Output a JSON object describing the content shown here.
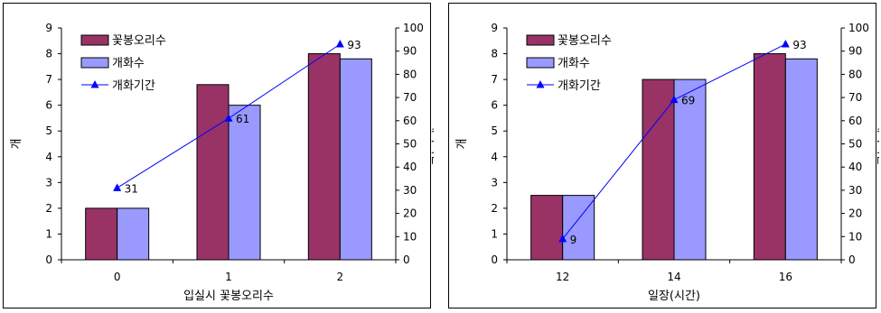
{
  "chart_data": [
    {
      "type": "bar",
      "xlabel": "입실시 꽃봉오리수",
      "ylabel": "개",
      "y2label": "개화기간",
      "categories": [
        "0",
        "1",
        "2"
      ],
      "ylim": [
        0,
        9
      ],
      "y2lim": [
        0,
        100
      ],
      "y_ticks": [
        0,
        1,
        2,
        3,
        4,
        5,
        6,
        7,
        8,
        9
      ],
      "y2_ticks": [
        0,
        10,
        20,
        30,
        40,
        50,
        60,
        70,
        80,
        90,
        100
      ],
      "legend_position": "top-left",
      "grid": false,
      "series": [
        {
          "name": "꽃봉오리수",
          "kind": "bar",
          "axis": "left",
          "color": "#993366",
          "values": [
            2,
            6.8,
            8
          ]
        },
        {
          "name": "개화수",
          "kind": "bar",
          "axis": "left",
          "color": "#9999ff",
          "values": [
            2,
            6,
            7.8
          ]
        },
        {
          "name": "개화기간",
          "kind": "line",
          "axis": "right",
          "color": "#0000ff",
          "values": [
            31,
            61,
            93
          ],
          "labels": [
            "31",
            "61",
            "93"
          ]
        }
      ]
    },
    {
      "type": "bar",
      "xlabel": "일장(시간)",
      "ylabel": "개",
      "y2label": "개화기간",
      "categories": [
        "12",
        "14",
        "16"
      ],
      "ylim": [
        0,
        9
      ],
      "y2lim": [
        0,
        100
      ],
      "y_ticks": [
        0,
        1,
        2,
        3,
        4,
        5,
        6,
        7,
        8,
        9
      ],
      "y2_ticks": [
        0,
        10,
        20,
        30,
        40,
        50,
        60,
        70,
        80,
        90,
        100
      ],
      "legend_position": "top-left",
      "grid": false,
      "series": [
        {
          "name": "꽃봉오리수",
          "kind": "bar",
          "axis": "left",
          "color": "#993366",
          "values": [
            2.5,
            7,
            8
          ]
        },
        {
          "name": "개화수",
          "kind": "bar",
          "axis": "left",
          "color": "#9999ff",
          "values": [
            2.5,
            7,
            7.8
          ]
        },
        {
          "name": "개화기간",
          "kind": "line",
          "axis": "right",
          "color": "#0000ff",
          "values": [
            9,
            69,
            93
          ],
          "labels": [
            "9",
            "69",
            "93"
          ]
        }
      ]
    }
  ]
}
